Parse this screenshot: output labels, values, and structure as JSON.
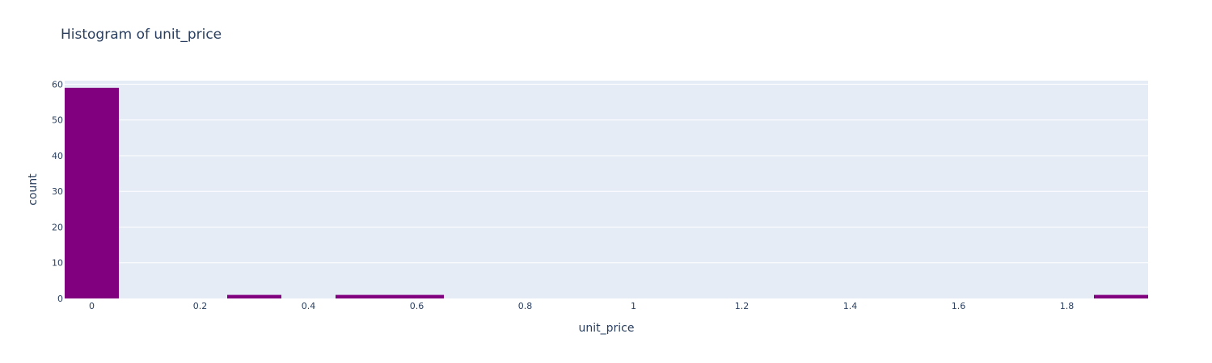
{
  "chart_data": {
    "type": "bar",
    "title": "Histogram of unit_price",
    "xlabel": "unit_price",
    "ylabel": "count",
    "xlim": [
      -0.05,
      1.95
    ],
    "ylim": [
      0,
      61
    ],
    "x_ticks": [
      0,
      0.2,
      0.4,
      0.6,
      0.8,
      1,
      1.2,
      1.4,
      1.6,
      1.8
    ],
    "x_tick_labels": [
      "0",
      "0.2",
      "0.4",
      "0.6",
      "0.8",
      "1",
      "1.2",
      "1.4",
      "1.6",
      "1.8"
    ],
    "y_ticks": [
      0,
      10,
      20,
      30,
      40,
      50,
      60
    ],
    "y_tick_labels": [
      "0",
      "10",
      "20",
      "30",
      "40",
      "50",
      "60"
    ],
    "bin_size": 0.1,
    "bins": [
      {
        "x0": -0.05,
        "x1": 0.05,
        "count": 59
      },
      {
        "x0": 0.25,
        "x1": 0.35,
        "count": 1
      },
      {
        "x0": 0.45,
        "x1": 0.55,
        "count": 1
      },
      {
        "x0": 0.55,
        "x1": 0.65,
        "count": 1
      },
      {
        "x0": 1.85,
        "x1": 1.95,
        "count": 1
      }
    ],
    "bar_color": "#800080",
    "plot_bg": "#e5ecf6",
    "grid_color": "#ffffff",
    "grid": true
  }
}
